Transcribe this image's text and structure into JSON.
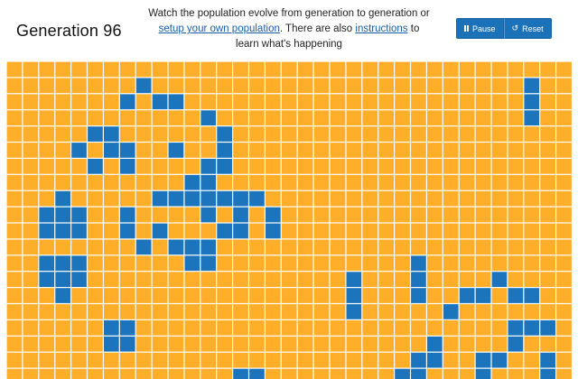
{
  "header": {
    "generation_label": "Generation 96",
    "intro": {
      "line1": "Watch the population evolve from generation to generation or",
      "setup_link": "setup your own population",
      "middle": ". There are also ",
      "instructions_link": "instructions",
      "to": " to",
      "line3": "learn what's happening"
    }
  },
  "controls": {
    "pause_label": "Pause",
    "reset_label": "Reset"
  },
  "grid": {
    "colors": {
      "dead": "#ffae2a",
      "alive": "#1c75bc",
      "line": "#ffffff"
    },
    "visible_rows": 20,
    "visible_cols": 35,
    "alive_cells": [
      [
        1,
        8
      ],
      [
        1,
        32
      ],
      [
        2,
        7
      ],
      [
        2,
        9
      ],
      [
        2,
        10
      ],
      [
        2,
        32
      ],
      [
        3,
        12
      ],
      [
        3,
        32
      ],
      [
        4,
        5
      ],
      [
        4,
        6
      ],
      [
        4,
        13
      ],
      [
        5,
        4
      ],
      [
        5,
        6
      ],
      [
        5,
        7
      ],
      [
        5,
        10
      ],
      [
        5,
        13
      ],
      [
        6,
        5
      ],
      [
        6,
        7
      ],
      [
        6,
        12
      ],
      [
        6,
        13
      ],
      [
        7,
        11
      ],
      [
        7,
        12
      ],
      [
        8,
        3
      ],
      [
        8,
        9
      ],
      [
        8,
        10
      ],
      [
        8,
        11
      ],
      [
        8,
        12
      ],
      [
        8,
        13
      ],
      [
        8,
        14
      ],
      [
        8,
        15
      ],
      [
        9,
        2
      ],
      [
        9,
        3
      ],
      [
        9,
        4
      ],
      [
        9,
        7
      ],
      [
        9,
        12
      ],
      [
        9,
        14
      ],
      [
        9,
        16
      ],
      [
        10,
        2
      ],
      [
        10,
        3
      ],
      [
        10,
        4
      ],
      [
        10,
        7
      ],
      [
        10,
        9
      ],
      [
        10,
        13
      ],
      [
        10,
        14
      ],
      [
        10,
        16
      ],
      [
        11,
        8
      ],
      [
        11,
        10
      ],
      [
        11,
        11
      ],
      [
        11,
        12
      ],
      [
        12,
        2
      ],
      [
        12,
        3
      ],
      [
        12,
        4
      ],
      [
        12,
        11
      ],
      [
        12,
        12
      ],
      [
        12,
        25
      ],
      [
        13,
        2
      ],
      [
        13,
        3
      ],
      [
        13,
        4
      ],
      [
        13,
        21
      ],
      [
        13,
        25
      ],
      [
        13,
        30
      ],
      [
        14,
        3
      ],
      [
        14,
        21
      ],
      [
        14,
        25
      ],
      [
        14,
        28
      ],
      [
        14,
        29
      ],
      [
        14,
        31
      ],
      [
        14,
        32
      ],
      [
        15,
        21
      ],
      [
        15,
        27
      ],
      [
        16,
        6
      ],
      [
        16,
        7
      ],
      [
        16,
        31
      ],
      [
        16,
        32
      ],
      [
        16,
        33
      ],
      [
        17,
        6
      ],
      [
        17,
        7
      ],
      [
        17,
        26
      ],
      [
        17,
        31
      ],
      [
        18,
        25
      ],
      [
        18,
        26
      ],
      [
        18,
        29
      ],
      [
        18,
        30
      ],
      [
        18,
        33
      ],
      [
        19,
        14
      ],
      [
        19,
        15
      ],
      [
        19,
        24
      ],
      [
        19,
        25
      ],
      [
        19,
        29
      ],
      [
        19,
        33
      ]
    ]
  }
}
